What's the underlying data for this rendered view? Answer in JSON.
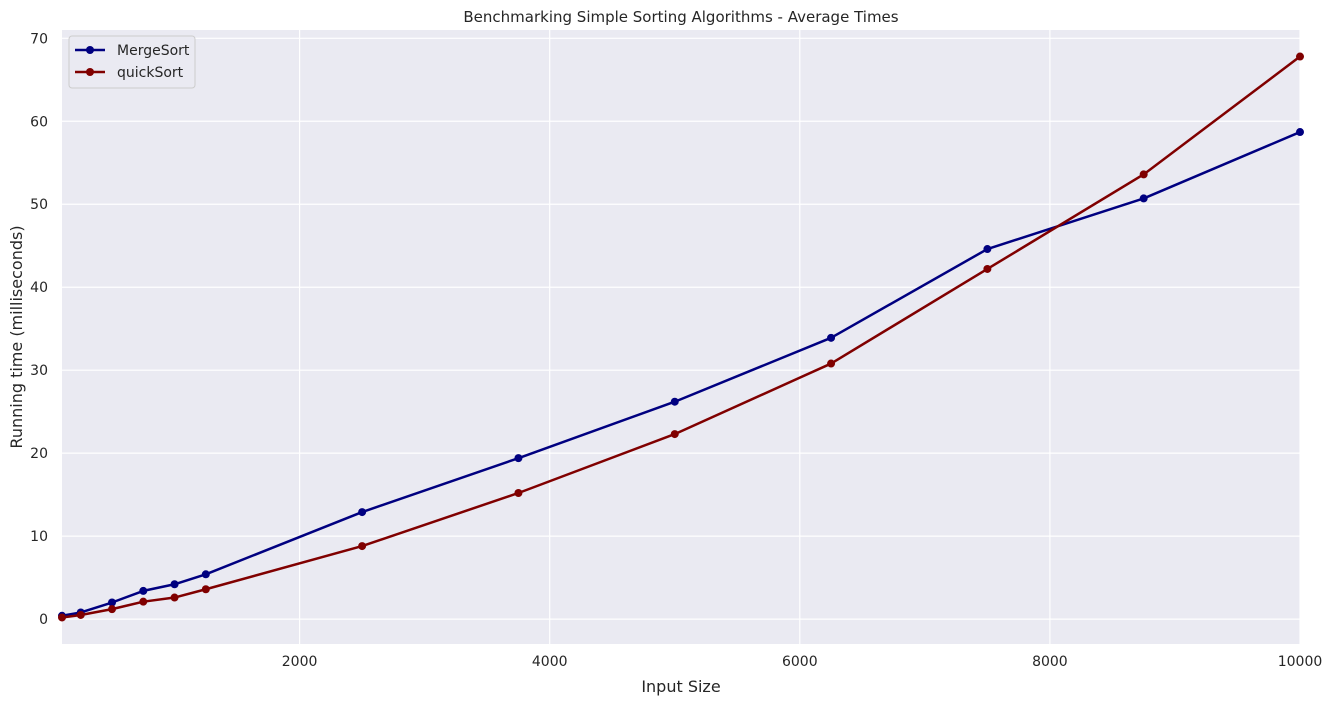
{
  "chart_data": {
    "type": "line",
    "title": "Benchmarking Simple Sorting Algorithms - Average Times",
    "xlabel": "Input Size",
    "ylabel": "Running time (milliseconds)",
    "xlim": [
      100,
      10000
    ],
    "ylim": [
      -3,
      71
    ],
    "xticks": [
      2000,
      4000,
      6000,
      8000,
      10000
    ],
    "yticks": [
      0,
      10,
      20,
      30,
      40,
      50,
      60,
      70
    ],
    "grid": true,
    "legend_position": "top-left",
    "x": [
      100,
      250,
      500,
      750,
      1000,
      1250,
      2500,
      3750,
      5000,
      6250,
      7500,
      8750,
      10000
    ],
    "series": [
      {
        "name": "MergeSort",
        "color": "#000080",
        "values": [
          0.4,
          0.8,
          2.0,
          3.4,
          4.2,
          5.4,
          12.9,
          19.4,
          26.2,
          33.9,
          44.6,
          50.7,
          58.7
        ]
      },
      {
        "name": "quickSort",
        "color": "#800000",
        "values": [
          0.2,
          0.5,
          1.2,
          2.1,
          2.6,
          3.6,
          8.8,
          15.2,
          22.3,
          30.8,
          42.2,
          53.6,
          67.8
        ]
      }
    ]
  }
}
